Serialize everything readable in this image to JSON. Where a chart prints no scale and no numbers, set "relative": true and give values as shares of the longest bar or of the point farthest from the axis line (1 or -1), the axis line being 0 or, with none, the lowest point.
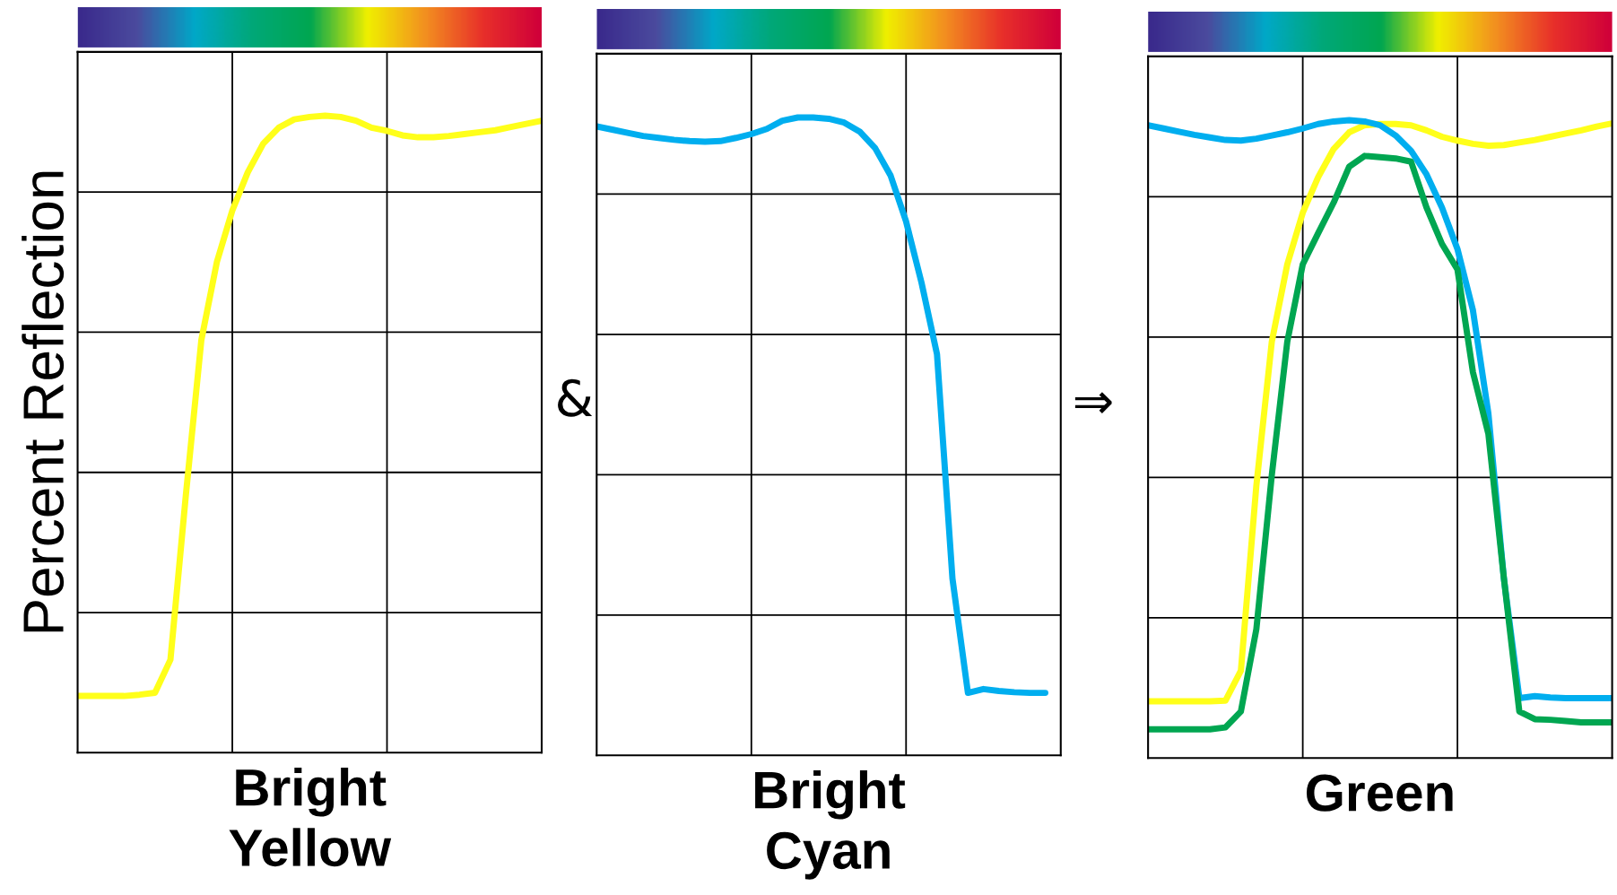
{
  "chart_data": [
    {
      "type": "line",
      "relative": true,
      "xlabel": "Bright\nYellow",
      "ylabel": "Percent Reflection",
      "annotations": [
        "&"
      ],
      "grid": true,
      "tick_labels": false,
      "legend": false,
      "marker": "none",
      "line_style": "solid",
      "categories": [
        null,
        null,
        null,
        null,
        null,
        null,
        null,
        null,
        null,
        null,
        null,
        null,
        null,
        null,
        null,
        null,
        null,
        null,
        null,
        null,
        null,
        null,
        null,
        null,
        null,
        null,
        null,
        null,
        null,
        null,
        null
      ],
      "series": [
        {
          "color": "#ffff1a",
          "values": [
            0.089,
            0.089,
            0.089,
            0.089,
            0.091,
            0.094,
            0.146,
            0.405,
            0.648,
            0.77,
            0.851,
            0.911,
            0.956,
            0.981,
            0.994,
            0.998,
            1,
            0.998,
            0.992,
            0.981,
            0.976,
            0.969,
            0.966,
            0.966,
            0.968,
            0.971,
            0.974,
            0.977,
            0.982,
            0.987,
            0.992
          ]
        }
      ]
    },
    {
      "type": "line",
      "relative": true,
      "xlabel": "Bright\nCyan",
      "annotations": [
        "⇒"
      ],
      "grid": true,
      "tick_labels": false,
      "legend": false,
      "marker": "none",
      "line_style": "solid",
      "categories": [
        null,
        null,
        null,
        null,
        null,
        null,
        null,
        null,
        null,
        null,
        null,
        null,
        null,
        null,
        null,
        null,
        null,
        null,
        null,
        null,
        null,
        null,
        null,
        null,
        null,
        null,
        null,
        null,
        null,
        null,
        null
      ],
      "series": [
        {
          "color": "#00aeef",
          "values": [
            0.986,
            0.981,
            0.976,
            0.971,
            0.968,
            0.965,
            0.963,
            0.962,
            0.963,
            0.968,
            0.974,
            0.982,
            0.995,
            1,
            1,
            0.998,
            0.992,
            0.978,
            0.952,
            0.909,
            0.837,
            0.741,
            0.629,
            0.277,
            0.098,
            0.104,
            0.101,
            0.099,
            0.098,
            0.098,
            null
          ]
        }
      ]
    },
    {
      "type": "line",
      "relative": true,
      "xlabel": "Green",
      "grid": true,
      "tick_labels": false,
      "legend": false,
      "marker": "none",
      "line_style": "solid",
      "categories": [
        null,
        null,
        null,
        null,
        null,
        null,
        null,
        null,
        null,
        null,
        null,
        null,
        null,
        null,
        null,
        null,
        null,
        null,
        null,
        null,
        null,
        null,
        null,
        null,
        null,
        null,
        null,
        null,
        null,
        null,
        null
      ],
      "series": [
        {
          "color": "#ffff1a",
          "values": [
            0.089,
            0.089,
            0.089,
            0.089,
            0.089,
            0.09,
            0.137,
            0.427,
            0.653,
            0.774,
            0.855,
            0.911,
            0.955,
            0.981,
            0.992,
            0.994,
            0.994,
            0.992,
            0.984,
            0.974,
            0.968,
            0.963,
            0.96,
            0.961,
            0.965,
            0.969,
            0.974,
            0.979,
            0.984,
            0.99,
            0.995
          ]
        },
        {
          "color": "#00aeef",
          "values": [
            0.992,
            0.987,
            0.982,
            0.977,
            0.973,
            0.969,
            0.968,
            0.971,
            0.976,
            0.981,
            0.987,
            0.994,
            0.998,
            1,
            0.998,
            0.992,
            0.976,
            0.952,
            0.915,
            0.863,
            0.798,
            0.702,
            0.54,
            0.282,
            0.094,
            0.097,
            0.095,
            0.094,
            0.094,
            0.094,
            0.094
          ]
        },
        {
          "color": "#00a651",
          "values": [
            0.045,
            0.045,
            0.045,
            0.045,
            0.045,
            0.048,
            0.073,
            0.202,
            0.444,
            0.653,
            0.774,
            0.823,
            0.871,
            0.927,
            0.944,
            0.942,
            0.94,
            0.935,
            0.863,
            0.806,
            0.766,
            0.605,
            0.508,
            0.282,
            0.073,
            0.061,
            0.06,
            0.058,
            0.056,
            0.056,
            0.056
          ]
        }
      ]
    }
  ]
}
